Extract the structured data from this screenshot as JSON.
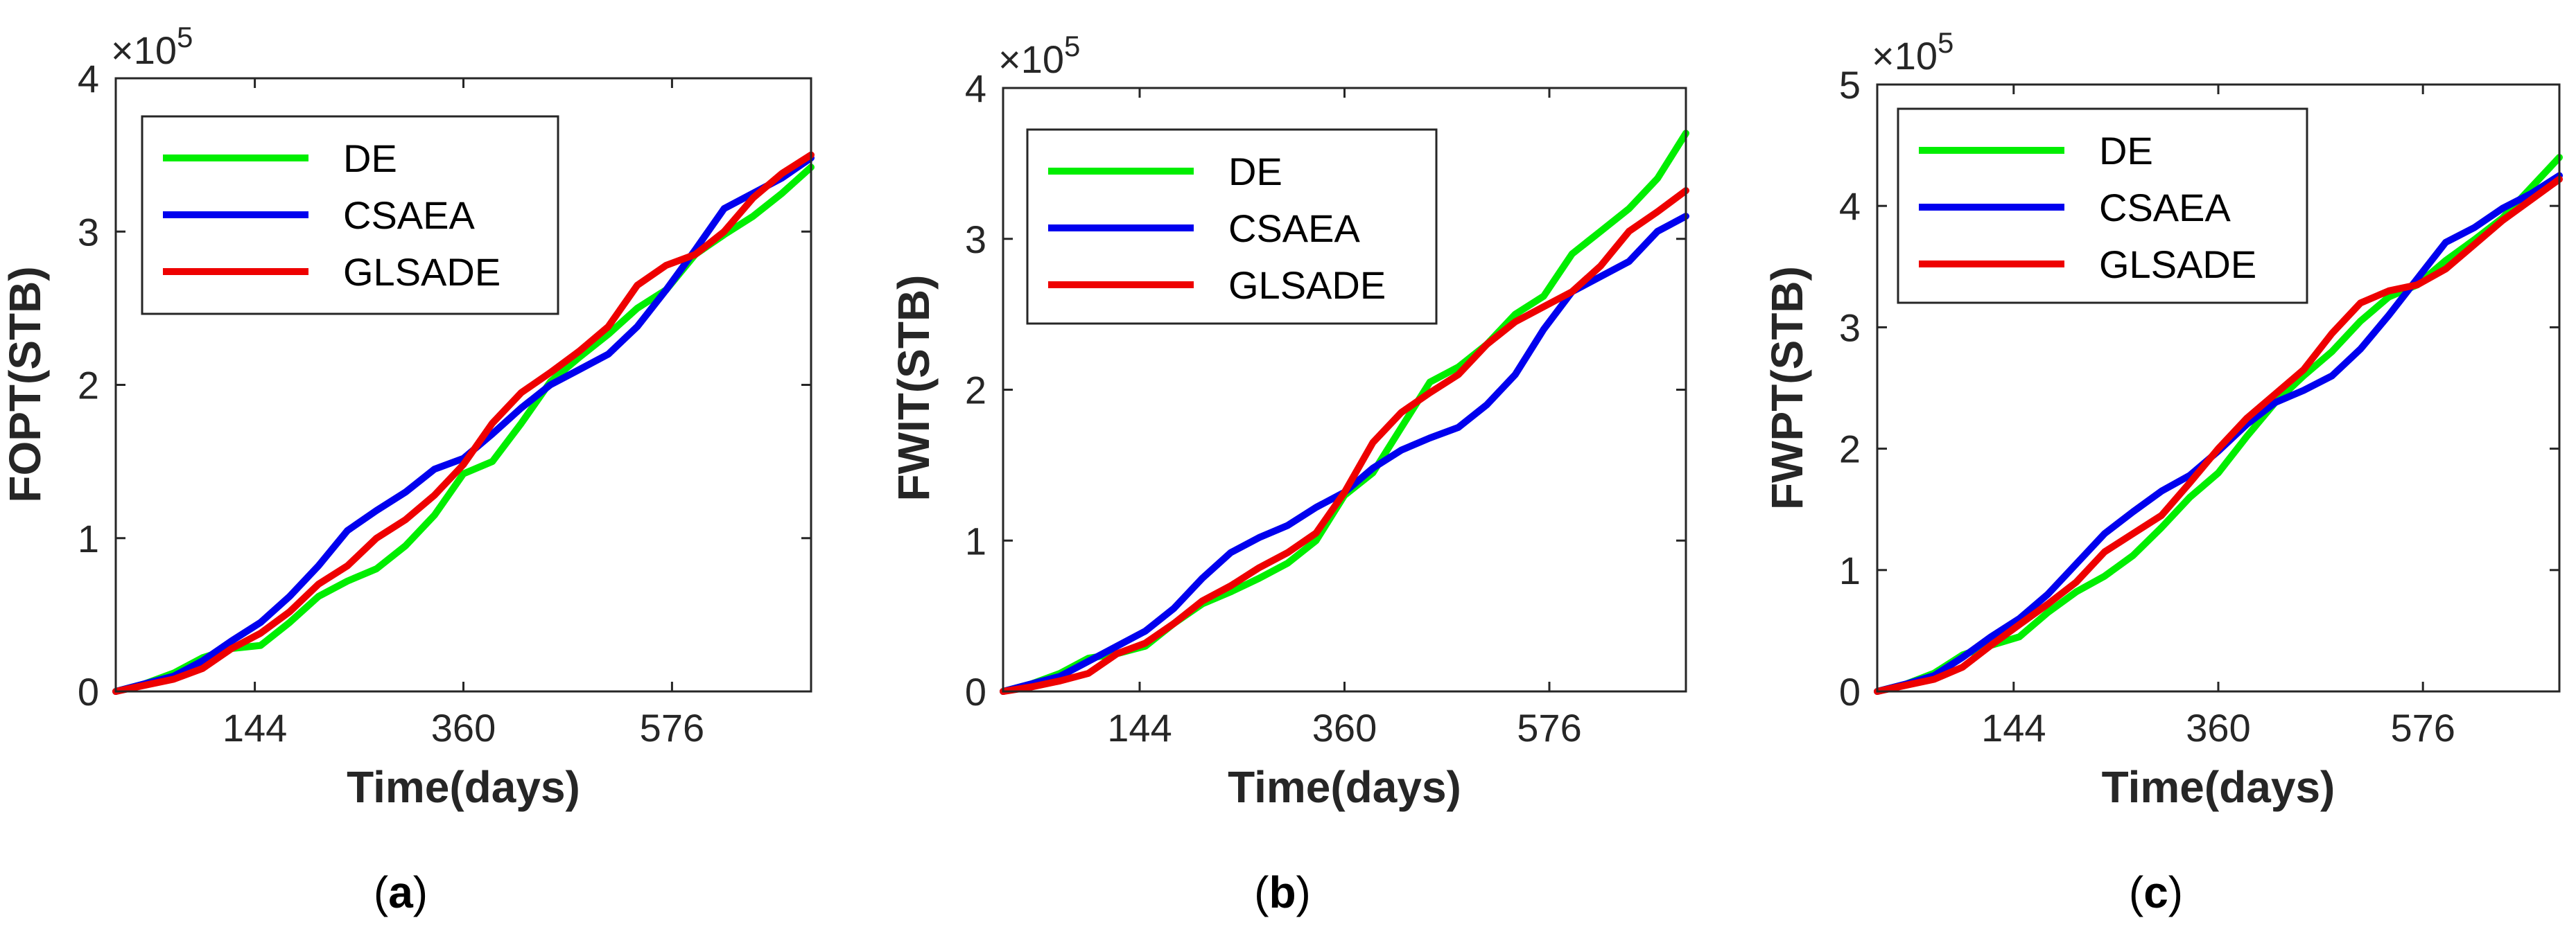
{
  "figure": {
    "panels": [
      "(a)",
      "(b)",
      "(c)"
    ]
  },
  "style": {
    "series_colors": {
      "DE": "#00ee00",
      "CSAEA": "#0000ee",
      "GLSADE": "#ee0000"
    },
    "axis_color": "#262626",
    "background": "#ffffff"
  },
  "chart_data": [
    {
      "type": "line",
      "panel_label": "(a)",
      "xlabel": "Time(days)",
      "ylabel": "FOPT(STB)",
      "y_exponent_label": "×10",
      "y_exponent": "5",
      "xlim": [
        0,
        720
      ],
      "ylim": [
        0,
        4
      ],
      "x_ticks": [
        144,
        360,
        576
      ],
      "x_tick_labels": [
        "144",
        "360",
        "576"
      ],
      "y_ticks": [
        0,
        1,
        2,
        3,
        4
      ],
      "y_tick_labels": [
        "0",
        "1",
        "2",
        "3",
        "4"
      ],
      "legend_position": "top-left",
      "x": [
        0,
        30,
        60,
        90,
        120,
        150,
        180,
        210,
        240,
        270,
        300,
        330,
        360,
        390,
        420,
        450,
        480,
        510,
        540,
        570,
        600,
        630,
        660,
        690,
        720
      ],
      "series": [
        {
          "name": "DE",
          "values": [
            0,
            0.05,
            0.12,
            0.22,
            0.28,
            0.3,
            0.45,
            0.62,
            0.72,
            0.8,
            0.95,
            1.15,
            1.42,
            1.5,
            1.75,
            2.02,
            2.18,
            2.33,
            2.5,
            2.62,
            2.85,
            2.98,
            3.1,
            3.25,
            3.42
          ]
        },
        {
          "name": "CSAEA",
          "values": [
            0,
            0.05,
            0.1,
            0.2,
            0.33,
            0.45,
            0.62,
            0.82,
            1.05,
            1.18,
            1.3,
            1.45,
            1.52,
            1.68,
            1.85,
            2.0,
            2.1,
            2.2,
            2.38,
            2.62,
            2.88,
            3.15,
            3.25,
            3.35,
            3.48
          ]
        },
        {
          "name": "GLSADE",
          "values": [
            0,
            0.04,
            0.08,
            0.15,
            0.28,
            0.38,
            0.52,
            0.7,
            0.82,
            1.0,
            1.12,
            1.28,
            1.48,
            1.75,
            1.95,
            2.08,
            2.22,
            2.38,
            2.65,
            2.78,
            2.85,
            3.0,
            3.22,
            3.38,
            3.5
          ]
        }
      ]
    },
    {
      "type": "line",
      "panel_label": "(b)",
      "xlabel": "Time(days)",
      "ylabel": "FWIT(STB)",
      "y_exponent_label": "×10",
      "y_exponent": "5",
      "xlim": [
        0,
        720
      ],
      "ylim": [
        0,
        4
      ],
      "x_ticks": [
        144,
        360,
        576
      ],
      "x_tick_labels": [
        "144",
        "360",
        "576"
      ],
      "y_ticks": [
        0,
        1,
        2,
        3,
        4
      ],
      "y_tick_labels": [
        "0",
        "1",
        "2",
        "3",
        "4"
      ],
      "legend_position": "top-left",
      "x": [
        0,
        30,
        60,
        90,
        120,
        150,
        180,
        210,
        240,
        270,
        300,
        330,
        360,
        390,
        420,
        450,
        480,
        510,
        540,
        570,
        600,
        630,
        660,
        690,
        720
      ],
      "series": [
        {
          "name": "DE",
          "values": [
            0,
            0.05,
            0.12,
            0.22,
            0.25,
            0.3,
            0.45,
            0.58,
            0.66,
            0.75,
            0.85,
            1.0,
            1.3,
            1.45,
            1.75,
            2.05,
            2.15,
            2.3,
            2.5,
            2.62,
            2.9,
            3.05,
            3.2,
            3.4,
            3.7
          ]
        },
        {
          "name": "CSAEA",
          "values": [
            0,
            0.05,
            0.1,
            0.2,
            0.3,
            0.4,
            0.55,
            0.75,
            0.92,
            1.02,
            1.1,
            1.22,
            1.32,
            1.48,
            1.6,
            1.68,
            1.75,
            1.9,
            2.1,
            2.4,
            2.65,
            2.75,
            2.85,
            3.05,
            3.15
          ]
        },
        {
          "name": "GLSADE",
          "values": [
            0,
            0.03,
            0.07,
            0.12,
            0.25,
            0.32,
            0.45,
            0.6,
            0.7,
            0.82,
            0.92,
            1.05,
            1.32,
            1.65,
            1.85,
            1.98,
            2.1,
            2.3,
            2.45,
            2.55,
            2.65,
            2.82,
            3.05,
            3.18,
            3.32
          ]
        }
      ]
    },
    {
      "type": "line",
      "panel_label": "(c)",
      "xlabel": "Time(days)",
      "ylabel": "FWPT(STB)",
      "y_exponent_label": "×10",
      "y_exponent": "5",
      "xlim": [
        0,
        720
      ],
      "ylim": [
        0,
        5
      ],
      "x_ticks": [
        144,
        360,
        576
      ],
      "x_tick_labels": [
        "144",
        "360",
        "576"
      ],
      "y_ticks": [
        0,
        1,
        2,
        3,
        4,
        5
      ],
      "y_tick_labels": [
        "0",
        "1",
        "2",
        "3",
        "4",
        "5"
      ],
      "legend_position": "top-left",
      "x": [
        0,
        30,
        60,
        90,
        120,
        150,
        180,
        210,
        240,
        270,
        300,
        330,
        360,
        390,
        420,
        450,
        480,
        510,
        540,
        570,
        600,
        630,
        660,
        690,
        720
      ],
      "series": [
        {
          "name": "DE",
          "values": [
            0,
            0.06,
            0.15,
            0.3,
            0.38,
            0.45,
            0.65,
            0.82,
            0.95,
            1.12,
            1.35,
            1.6,
            1.8,
            2.1,
            2.38,
            2.6,
            2.8,
            3.05,
            3.25,
            3.35,
            3.55,
            3.72,
            3.9,
            4.15,
            4.4
          ]
        },
        {
          "name": "CSAEA",
          "values": [
            0,
            0.06,
            0.13,
            0.28,
            0.45,
            0.6,
            0.8,
            1.05,
            1.3,
            1.48,
            1.65,
            1.78,
            1.98,
            2.2,
            2.38,
            2.48,
            2.6,
            2.82,
            3.1,
            3.4,
            3.7,
            3.82,
            3.98,
            4.1,
            4.25
          ]
        },
        {
          "name": "GLSADE",
          "values": [
            0,
            0.05,
            0.1,
            0.2,
            0.38,
            0.55,
            0.72,
            0.9,
            1.15,
            1.3,
            1.45,
            1.72,
            2.0,
            2.25,
            2.45,
            2.65,
            2.95,
            3.2,
            3.3,
            3.35,
            3.48,
            3.68,
            3.88,
            4.05,
            4.22
          ]
        }
      ]
    }
  ]
}
